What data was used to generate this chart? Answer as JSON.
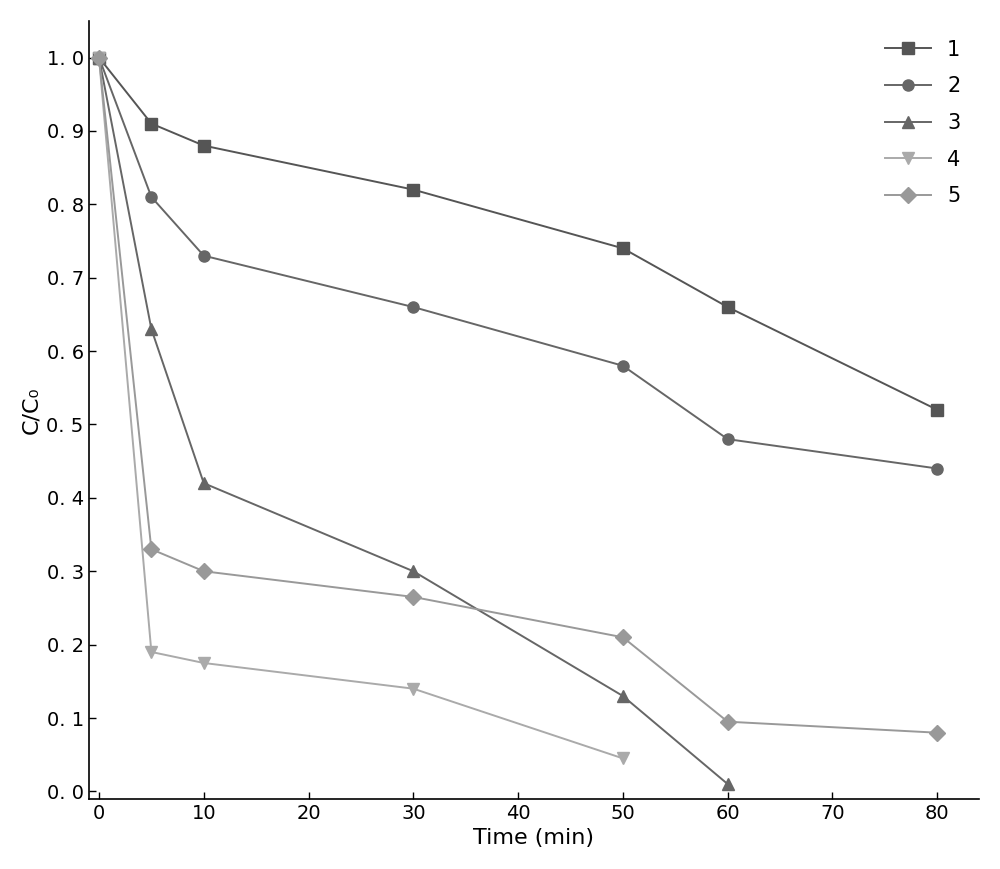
{
  "series": [
    {
      "label": "1",
      "x": [
        0,
        5,
        10,
        30,
        50,
        60,
        80
      ],
      "y": [
        1.0,
        0.91,
        0.88,
        0.82,
        0.74,
        0.66,
        0.52
      ],
      "marker": "s",
      "color": "#555555",
      "markersize": 8,
      "linewidth": 1.4
    },
    {
      "label": "2",
      "x": [
        0,
        5,
        10,
        30,
        50,
        60,
        80
      ],
      "y": [
        1.0,
        0.81,
        0.73,
        0.66,
        0.58,
        0.48,
        0.44
      ],
      "marker": "o",
      "color": "#666666",
      "markersize": 8,
      "linewidth": 1.4
    },
    {
      "label": "3",
      "x": [
        0,
        5,
        10,
        30,
        50,
        60
      ],
      "y": [
        1.0,
        0.63,
        0.42,
        0.3,
        0.13,
        0.01
      ],
      "marker": "^",
      "color": "#666666",
      "markersize": 9,
      "linewidth": 1.4
    },
    {
      "label": "4",
      "x": [
        0,
        5,
        10,
        30,
        50
      ],
      "y": [
        1.0,
        0.19,
        0.175,
        0.14,
        0.045
      ],
      "marker": "v",
      "color": "#aaaaaa",
      "markersize": 9,
      "linewidth": 1.4
    },
    {
      "label": "5",
      "x": [
        0,
        5,
        10,
        30,
        50,
        60,
        80
      ],
      "y": [
        1.0,
        0.33,
        0.3,
        0.265,
        0.21,
        0.095,
        0.08
      ],
      "marker": "D",
      "color": "#999999",
      "markersize": 8,
      "linewidth": 1.4
    }
  ],
  "xlabel": "Time (min)",
  "ylabel": "C/C₀",
  "xlim": [
    -1,
    84
  ],
  "ylim": [
    -0.01,
    1.05
  ],
  "xticks": [
    0,
    10,
    20,
    30,
    40,
    50,
    60,
    70,
    80
  ],
  "yticks": [
    0.0,
    0.1,
    0.2,
    0.3,
    0.4,
    0.5,
    0.6,
    0.7,
    0.8,
    0.9,
    1.0
  ],
  "ytick_labels": [
    "0. 0",
    "0. 1",
    "0. 2",
    "0. 3",
    "0. 4",
    "0. 5",
    "0. 6",
    "0. 7",
    "0. 8",
    "0. 9",
    "1. 0"
  ],
  "xtick_labels": [
    "0",
    "10",
    "20",
    "30",
    "40",
    "50",
    "60",
    "70",
    "80"
  ],
  "legend_loc": "upper right",
  "background_color": "#ffffff",
  "line_style": "-",
  "tick_fontsize": 14,
  "label_fontsize": 16,
  "legend_fontsize": 15
}
